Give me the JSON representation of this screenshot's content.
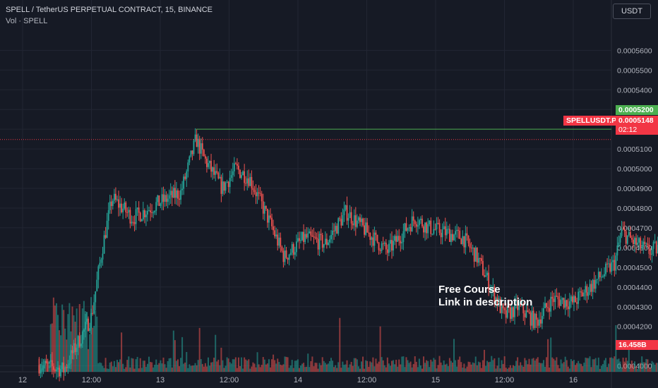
{
  "header": {
    "symbol_line": "SPELL / TetherUS PERPETUAL CONTRACT, 15, BINANCE",
    "volume_line": "Vol · SPELL"
  },
  "currency_button": "USDT",
  "annotation": {
    "line1": "Free Course",
    "line2": "Link in description"
  },
  "colors": {
    "background": "#161a25",
    "bull": "#26a69a",
    "bear": "#ef5350",
    "resistance": "#4caf50",
    "current_price": "#f23645",
    "arrow": "#2962ff",
    "trendline": "#ffffff"
  },
  "chart_data": {
    "type": "candlestick",
    "title": "SPELL / TetherUS PERPETUAL CONTRACT, 15, BINANCE",
    "xlabel": "",
    "ylabel": "",
    "x_ticks": [
      "12",
      "12:00",
      "13",
      "12:00",
      "14",
      "12:00",
      "15",
      "12:00",
      "16"
    ],
    "y_ticks": [
      "0.0005600",
      "0.0005500",
      "0.0005400",
      "0.0005300",
      "0.0005200",
      "0.0005100",
      "0.0005000",
      "0.0004900",
      "0.0004800",
      "0.0004700",
      "0.0004600",
      "0.0004500",
      "0.0004400",
      "0.0004300",
      "0.0004200",
      "0.0004100",
      "0.0004000"
    ],
    "ylim": [
      0.000397,
      0.000573
    ],
    "grid": true,
    "price_path": [
      [
        0.0,
        0.000402
      ],
      [
        0.3,
        0.000398
      ],
      [
        0.5,
        0.000425
      ],
      [
        0.58,
        0.00046
      ],
      [
        0.65,
        0.000485
      ],
      [
        0.8,
        0.000475
      ],
      [
        1.0,
        0.000483
      ],
      [
        1.15,
        0.000488
      ],
      [
        1.2,
        0.0005
      ],
      [
        1.26,
        0.000515
      ],
      [
        1.32,
        0.000505
      ],
      [
        1.45,
        0.00049
      ],
      [
        1.55,
        0.0005
      ],
      [
        1.65,
        0.000495
      ],
      [
        1.8,
        0.000472
      ],
      [
        1.9,
        0.000455
      ],
      [
        2.05,
        0.000465
      ],
      [
        2.2,
        0.000462
      ],
      [
        2.35,
        0.000478
      ],
      [
        2.5,
        0.000468
      ],
      [
        2.65,
        0.000458
      ],
      [
        2.85,
        0.000475
      ],
      [
        2.95,
        0.00047
      ],
      [
        3.05,
        0.000468
      ],
      [
        3.2,
        0.000465
      ],
      [
        3.3,
        0.000455
      ],
      [
        3.4,
        0.00044
      ],
      [
        3.5,
        0.000425
      ],
      [
        3.6,
        0.00043
      ],
      [
        3.73,
        0.000422
      ],
      [
        3.85,
        0.000434
      ],
      [
        4.0,
        0.000432
      ],
      [
        4.15,
        0.000442
      ],
      [
        4.3,
        0.000452
      ],
      [
        4.35,
        0.000468
      ],
      [
        4.45,
        0.000462
      ],
      [
        4.55,
        0.000458
      ],
      [
        4.7,
        0.000462
      ],
      [
        4.85,
        0.000465
      ],
      [
        4.95,
        0.000472
      ],
      [
        5.05,
        0.000478
      ],
      [
        5.12,
        0.000475
      ],
      [
        5.2,
        0.000485
      ],
      [
        5.27,
        0.00051
      ],
      [
        5.32,
        0.000505
      ],
      [
        5.38,
        0.000498
      ],
      [
        5.43,
        0.000506
      ],
      [
        5.48,
        0.000518
      ],
      [
        5.52,
        0.000508
      ],
      [
        5.56,
        0.000516
      ],
      [
        5.6,
        0.0005148
      ]
    ],
    "volume_ticks": [],
    "resistance_level": 0.00052,
    "resistance_label": "0.0005200",
    "current_price": 0.0005148,
    "current_price_label": "0.0005148",
    "symbol_label": "SPELLUSDT.P",
    "countdown": "02:12",
    "volume_label": "16.458B",
    "trendline": {
      "from": [
        5.45,
        0.000496
      ],
      "to": [
        5.75,
        0.00052
      ]
    },
    "arrow": {
      "from": [
        5.75,
        0.00052
      ],
      "to": [
        5.95,
        0.000538
      ]
    },
    "resistance_from_x": 1.26
  }
}
